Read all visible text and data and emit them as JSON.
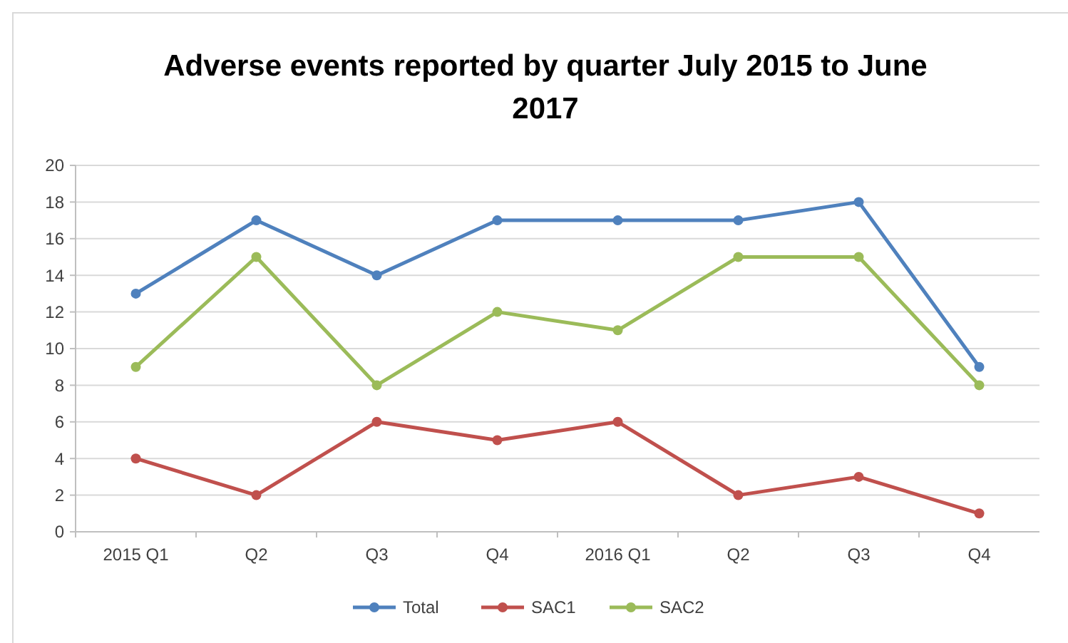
{
  "chart_data": {
    "type": "line",
    "title": "Adverse events reported by quarter July 2015 to June 2017",
    "categories": [
      "2015 Q1",
      "Q2",
      "Q3",
      "Q4",
      "2016 Q1",
      "Q2",
      "Q3",
      "Q4"
    ],
    "series": [
      {
        "name": "Total",
        "color": "#4f81bd",
        "values": [
          13,
          17,
          14,
          17,
          17,
          17,
          18,
          9
        ]
      },
      {
        "name": "SAC1",
        "color": "#c0504d",
        "values": [
          4,
          2,
          6,
          5,
          6,
          2,
          3,
          1
        ]
      },
      {
        "name": "SAC2",
        "color": "#9bbb59",
        "values": [
          9,
          15,
          8,
          12,
          11,
          15,
          15,
          8
        ]
      }
    ],
    "ylim": [
      0,
      20
    ],
    "yticks": [
      0,
      2,
      4,
      6,
      8,
      10,
      12,
      14,
      16,
      18,
      20
    ],
    "grid": "y",
    "legend": "bottom",
    "marker": "circle",
    "line_style": "solid"
  }
}
